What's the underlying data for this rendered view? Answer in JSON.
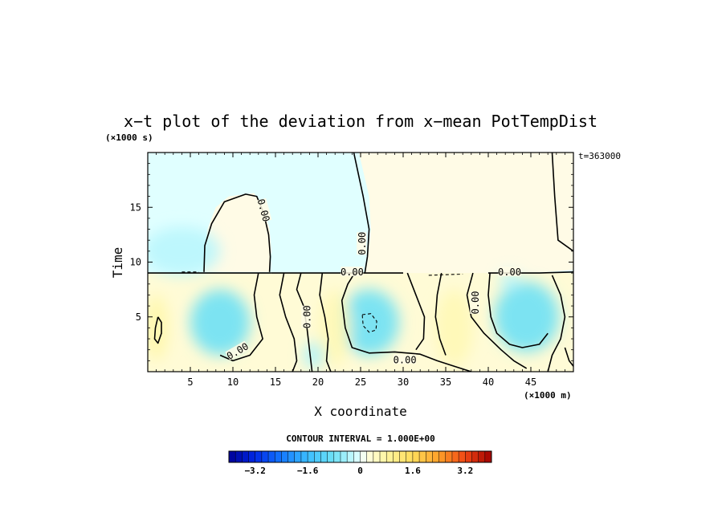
{
  "chart_data": {
    "type": "heatmap",
    "title": "x−t plot of the deviation from x−mean PotTempDist",
    "xlabel": "X coordinate",
    "ylabel": "Time",
    "x_unit": "(×1000 m)",
    "y_unit": "(×1000 s)",
    "time_stamp": "t=363000",
    "xlim": [
      0,
      50
    ],
    "ylim": [
      0,
      20
    ],
    "x_ticks": [
      {
        "value": 5,
        "label": "5"
      },
      {
        "value": 10,
        "label": "10"
      },
      {
        "value": 15,
        "label": "15"
      },
      {
        "value": 20,
        "label": "20"
      },
      {
        "value": 25,
        "label": "25"
      },
      {
        "value": 30,
        "label": "30"
      },
      {
        "value": 35,
        "label": "35"
      },
      {
        "value": 40,
        "label": "40"
      },
      {
        "value": 45,
        "label": "45"
      }
    ],
    "y_ticks": [
      {
        "value": 5,
        "label": "5"
      },
      {
        "value": 10,
        "label": "10"
      },
      {
        "value": 15,
        "label": "15"
      }
    ],
    "contour_interval_text": "CONTOUR INTERVAL = 1.000E+00",
    "contour_labels": [
      {
        "text": "0.00",
        "x": 13.5,
        "y": 14.7,
        "rotate": 75
      },
      {
        "text": "0.00",
        "x": 25.3,
        "y": 11.7,
        "rotate": -90
      },
      {
        "text": "0.00",
        "x": 24.0,
        "y": 9.0,
        "rotate": 0
      },
      {
        "text": "0.00",
        "x": 42.5,
        "y": 9.0,
        "rotate": 0
      },
      {
        "text": "0.00",
        "x": 18.8,
        "y": 5.0,
        "rotate": -90
      },
      {
        "text": "0.00",
        "x": 38.6,
        "y": 6.3,
        "rotate": -90
      },
      {
        "text": "0.00",
        "x": 10.6,
        "y": 1.8,
        "rotate": -30
      },
      {
        "text": "0.00",
        "x": 30.2,
        "y": 1.0,
        "rotate": 0
      }
    ],
    "colorbar": {
      "min": -4.0,
      "max": 4.0,
      "step": 0.2,
      "tick_values": [
        -3.2,
        -1.6,
        0,
        1.6,
        3.2
      ],
      "tick_labels": [
        "−3.2",
        "−1.6",
        "0",
        "1.6",
        "3.2"
      ]
    },
    "fill_regions": [
      {
        "name": "positive-upper-right",
        "level": "0.1 to 0.3",
        "points": [
          [
            23,
            20
          ],
          [
            50,
            20
          ],
          [
            50,
            9.3
          ],
          [
            47,
            9.1
          ],
          [
            40,
            8.9
          ],
          [
            33,
            8.9
          ],
          [
            25.5,
            8.9
          ],
          [
            25.8,
            10
          ],
          [
            26.2,
            13
          ],
          [
            26,
            16
          ],
          [
            24.8,
            20
          ]
        ]
      },
      {
        "name": "positive-bubble",
        "level": "0.1 to 0.3",
        "points": [
          [
            6.5,
            9.1
          ],
          [
            6.6,
            11
          ],
          [
            7,
            13
          ],
          [
            8,
            15
          ],
          [
            9.5,
            16
          ],
          [
            12.5,
            16.3
          ],
          [
            13.5,
            15
          ],
          [
            14.3,
            13
          ],
          [
            14.5,
            11
          ],
          [
            14.3,
            9.1
          ]
        ]
      },
      {
        "name": "positive-lower-band",
        "level": "0.3 to 0.6",
        "points": [
          [
            0,
            9
          ],
          [
            50,
            9
          ],
          [
            50,
            0
          ],
          [
            0,
            0
          ]
        ]
      }
    ],
    "anomaly_spots": [
      {
        "name": "cold-core-left",
        "x": 8.5,
        "y": 4.5,
        "rx": 3.5,
        "ry": 3.0,
        "value": -0.8
      },
      {
        "name": "cold-core-mid",
        "x": 26.0,
        "y": 4.5,
        "rx": 3.5,
        "ry": 3.0,
        "value": -0.8
      },
      {
        "name": "cold-core-right",
        "x": 44.5,
        "y": 5.0,
        "rx": 3.8,
        "ry": 3.2,
        "value": -0.8
      },
      {
        "name": "cold-band-upper",
        "x": 4.0,
        "y": 11.0,
        "rx": 4.5,
        "ry": 2.2,
        "value": -0.3
      },
      {
        "name": "cold-spot-lower",
        "x": 19.5,
        "y": 1.5,
        "rx": 1.2,
        "ry": 1.2,
        "value": -0.4
      },
      {
        "name": "cold-spot-right-upper",
        "x": 42.5,
        "y": 8.3,
        "rx": 1.2,
        "ry": 0.8,
        "value": -0.3
      },
      {
        "name": "warm-left-edge",
        "x": 1.0,
        "y": 4.0,
        "rx": 1.4,
        "ry": 3.0,
        "value": 0.7
      },
      {
        "name": "warm-middle-column",
        "x": 22.0,
        "y": 4.0,
        "rx": 1.8,
        "ry": 3.5,
        "value": 0.6
      },
      {
        "name": "warm-right-column",
        "x": 36.0,
        "y": 4.0,
        "rx": 2.2,
        "ry": 3.5,
        "value": 0.6
      }
    ],
    "contour_lines": [
      {
        "name": "contour-zero-bubble",
        "style": "solid",
        "points": [
          [
            6.6,
            9.1
          ],
          [
            6.7,
            11.5
          ],
          [
            7.5,
            13.5
          ],
          [
            9,
            15.5
          ],
          [
            11.5,
            16.2
          ],
          [
            12.8,
            16
          ],
          [
            13.6,
            14.5
          ],
          [
            14.2,
            12.5
          ],
          [
            14.4,
            10.5
          ],
          [
            14.3,
            9.1
          ]
        ]
      },
      {
        "name": "contour-zero-divider",
        "style": "solid",
        "points": [
          [
            24.2,
            20
          ],
          [
            25.3,
            16
          ],
          [
            26,
            13
          ],
          [
            25.8,
            10.5
          ],
          [
            25.5,
            9.0
          ]
        ]
      },
      {
        "name": "contour-zero-upper-right",
        "style": "solid",
        "points": [
          [
            47.5,
            20
          ],
          [
            47.8,
            16
          ],
          [
            48.2,
            12
          ],
          [
            50,
            11
          ]
        ]
      },
      {
        "name": "contour-zero-horizontal-left",
        "style": "solid",
        "points": [
          [
            0,
            9.0
          ],
          [
            10,
            9.0
          ],
          [
            14.5,
            9.0
          ]
        ]
      },
      {
        "name": "contour-zero-horizontal-mid",
        "style": "solid",
        "points": [
          [
            14.5,
            9.0
          ],
          [
            22,
            9.0
          ],
          [
            25.5,
            9.0
          ],
          [
            30,
            9.0
          ]
        ]
      },
      {
        "name": "contour-zero-horizontal-right",
        "style": "solid",
        "points": [
          [
            40,
            9.0
          ],
          [
            46,
            9.0
          ],
          [
            50,
            9.1
          ]
        ]
      },
      {
        "name": "contour-loop-left-tall",
        "style": "solid",
        "points": [
          [
            1.2,
            5.0
          ],
          [
            0.9,
            4
          ],
          [
            0.8,
            3
          ],
          [
            1.2,
            2.6
          ],
          [
            1.6,
            3.5
          ],
          [
            1.6,
            4.5
          ],
          [
            1.2,
            5.0
          ]
        ]
      },
      {
        "name": "contour-loop-mid-dashed",
        "style": "dashed",
        "points": [
          [
            25.2,
            5.2
          ],
          [
            26.2,
            5.3
          ],
          [
            26.9,
            4.6
          ],
          [
            26.8,
            3.8
          ],
          [
            26,
            3.6
          ],
          [
            25.3,
            4.2
          ],
          [
            25.2,
            5.2
          ]
        ]
      },
      {
        "name": "contour-column-1",
        "style": "solid",
        "points": [
          [
            13,
            9.0
          ],
          [
            12.5,
            7
          ],
          [
            12.8,
            5
          ],
          [
            13.5,
            3
          ],
          [
            12,
            1.5
          ],
          [
            10,
            1.0
          ],
          [
            8.5,
            1.5
          ]
        ]
      },
      {
        "name": "contour-column-2",
        "style": "solid",
        "points": [
          [
            16,
            9.0
          ],
          [
            15.5,
            7
          ],
          [
            16.2,
            5
          ],
          [
            17.2,
            3
          ],
          [
            17.5,
            1
          ],
          [
            17,
            0
          ]
        ]
      },
      {
        "name": "contour-column-3",
        "style": "solid",
        "points": [
          [
            18,
            9.0
          ],
          [
            17.5,
            7.5
          ],
          [
            18.3,
            6
          ],
          [
            18.7,
            4
          ],
          [
            19,
            2
          ],
          [
            19.3,
            0
          ]
        ]
      },
      {
        "name": "contour-column-4",
        "style": "solid",
        "points": [
          [
            20.5,
            9.0
          ],
          [
            20.2,
            7
          ],
          [
            20.8,
            5
          ],
          [
            21.2,
            3
          ],
          [
            21,
            1
          ],
          [
            21.5,
            0
          ]
        ]
      },
      {
        "name": "contour-column-5",
        "style": "solid",
        "points": [
          [
            24.3,
            9.0
          ],
          [
            23.5,
            8
          ],
          [
            22.8,
            6.5
          ],
          [
            23.2,
            4
          ],
          [
            24,
            2.2
          ],
          [
            26,
            1.7
          ],
          [
            29,
            1.8
          ],
          [
            32,
            1.6
          ],
          [
            34,
            1.0
          ],
          [
            36,
            0.5
          ],
          [
            38,
            0
          ]
        ]
      },
      {
        "name": "contour-column-6",
        "style": "solid",
        "points": [
          [
            30.5,
            9.0
          ],
          [
            31.5,
            7
          ],
          [
            32.5,
            5
          ],
          [
            32.4,
            3
          ],
          [
            31.5,
            2
          ]
        ]
      },
      {
        "name": "contour-column-7",
        "style": "solid",
        "points": [
          [
            34.5,
            9.0
          ],
          [
            34,
            7
          ],
          [
            33.8,
            5
          ],
          [
            34.3,
            3
          ],
          [
            35,
            1.5
          ]
        ]
      },
      {
        "name": "contour-column-8",
        "style": "solid",
        "points": [
          [
            38.2,
            9.0
          ],
          [
            37.5,
            7
          ],
          [
            38,
            5
          ],
          [
            39.5,
            3.5
          ],
          [
            41.5,
            2
          ],
          [
            43,
            1
          ],
          [
            44.5,
            0.3
          ]
        ]
      },
      {
        "name": "contour-column-9",
        "style": "solid",
        "points": [
          [
            40.2,
            9.0
          ],
          [
            40,
            7
          ],
          [
            40.3,
            5
          ],
          [
            41,
            3.5
          ],
          [
            42.5,
            2.5
          ],
          [
            44,
            2.2
          ],
          [
            46,
            2.5
          ],
          [
            47,
            3.5
          ]
        ]
      },
      {
        "name": "contour-column-10",
        "style": "solid",
        "points": [
          [
            47.5,
            8.8
          ],
          [
            48.5,
            7
          ],
          [
            49,
            5
          ],
          [
            48.5,
            3
          ],
          [
            47.5,
            1.5
          ],
          [
            47,
            0
          ]
        ]
      },
      {
        "name": "contour-bottom-right",
        "style": "solid",
        "points": [
          [
            49,
            2.2
          ],
          [
            49.5,
            1
          ],
          [
            50,
            0.5
          ]
        ]
      },
      {
        "name": "contour-dashed-fragment-left",
        "style": "dashed",
        "points": [
          [
            4,
            9.1
          ],
          [
            6,
            9.1
          ]
        ]
      },
      {
        "name": "contour-dashed-fragment-right",
        "style": "dashed",
        "points": [
          [
            33,
            8.8
          ],
          [
            37,
            8.9
          ]
        ]
      }
    ]
  }
}
